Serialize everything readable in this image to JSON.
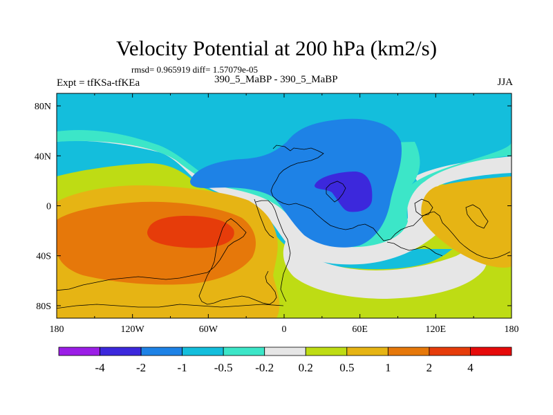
{
  "header": {
    "title": "Velocity Potential at 200 hPa (km2/s)",
    "stats": "rmsd= 0.965919 diff= 1.57079e-05",
    "experiment": "Expt = tfKSa-tfKEa",
    "cases": "390_5_MaBP - 390_5_MaBP",
    "season": "JJA"
  },
  "chart_data": {
    "type": "heatmap",
    "title": "Velocity Potential at 200 hPa (km2/s)",
    "units": "km2/s",
    "projection": "cylindrical-equidistant",
    "x_axis": {
      "range": [
        -180,
        180
      ],
      "tick_values": [
        -180,
        -120,
        -60,
        0,
        60,
        120,
        180
      ],
      "tick_labels": [
        "180",
        "120W",
        "60W",
        "0",
        "60E",
        "120E",
        "180"
      ]
    },
    "y_axis": {
      "range": [
        -90,
        90
      ],
      "tick_values": [
        80,
        40,
        0,
        -40,
        -80
      ],
      "tick_labels": [
        "80N",
        "40N",
        "0",
        "40S",
        "80S"
      ]
    },
    "colorbar": {
      "orientation": "horizontal",
      "position": "bottom",
      "levels": [
        -4,
        -2,
        -1,
        -0.5,
        -0.2,
        0.2,
        0.5,
        1,
        2,
        4
      ],
      "labels": [
        "-4",
        "-2",
        "-1",
        "-0.5",
        "-0.2",
        "0.2",
        "0.5",
        "1",
        "2",
        "4"
      ],
      "colors": [
        "#9b1ee6",
        "#3c28dc",
        "#1e82e6",
        "#14bedc",
        "#3ce6c8",
        "#e6e6e6",
        "#bedc14",
        "#e6b414",
        "#e6780a",
        "#e63c0a",
        "#e60a0a"
      ]
    },
    "field_regions": [
      {
        "name": "south-pacific-positive-max",
        "value_range": [
          2,
          4
        ],
        "center": [
          -92,
          -20
        ]
      },
      {
        "name": "north-africa-asia-negative-min",
        "value_range": [
          -4,
          -2
        ],
        "center": [
          55,
          8
        ]
      },
      {
        "name": "eastern-pacific-positive",
        "value_range": [
          1,
          2
        ],
        "center": [
          155,
          -5
        ]
      }
    ]
  }
}
